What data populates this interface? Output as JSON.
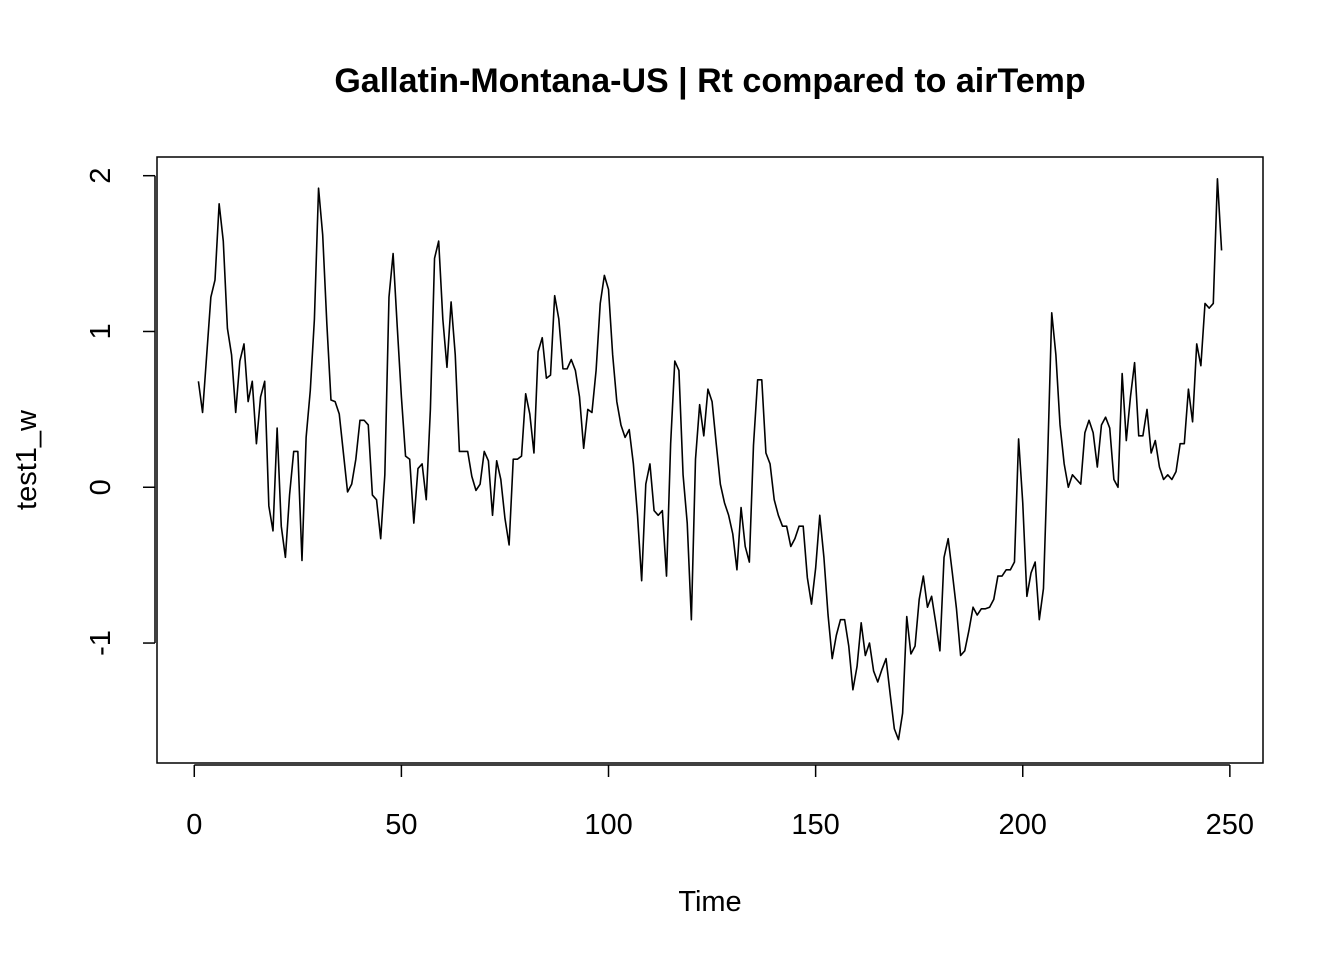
{
  "chart_data": {
    "type": "line",
    "title": "Gallatin-Montana-US | Rt compared to airTemp",
    "xlabel": "Time",
    "ylabel": "test1_w",
    "xlim": [
      -9,
      258
    ],
    "ylim": [
      -1.77,
      2.12
    ],
    "xticks": [
      0,
      50,
      100,
      150,
      200,
      250
    ],
    "xtick_labels": [
      "0",
      "50",
      "100",
      "150",
      "200",
      "250"
    ],
    "yticks": [
      -1,
      0,
      1,
      2
    ],
    "ytick_labels": [
      "-1",
      "0",
      "1",
      "2"
    ],
    "grid": false,
    "series": [
      {
        "color": "#000000",
        "x": [
          1,
          2,
          3,
          4,
          5,
          6,
          7,
          8,
          9,
          10,
          11,
          12,
          13,
          14,
          15,
          16,
          17,
          18,
          19,
          20,
          21,
          22,
          23,
          24,
          25,
          26,
          27,
          28,
          29,
          30,
          31,
          32,
          33,
          34,
          35,
          36,
          37,
          38,
          39,
          40,
          41,
          42,
          43,
          44,
          45,
          46,
          47,
          48,
          49,
          50,
          51,
          52,
          53,
          54,
          55,
          56,
          57,
          58,
          59,
          60,
          61,
          62,
          63,
          64,
          65,
          66,
          67,
          68,
          69,
          70,
          71,
          72,
          73,
          74,
          75,
          76,
          77,
          78,
          79,
          80,
          81,
          82,
          83,
          84,
          85,
          86,
          87,
          88,
          89,
          90,
          91,
          92,
          93,
          94,
          95,
          96,
          97,
          98,
          99,
          100,
          101,
          102,
          103,
          104,
          105,
          106,
          107,
          108,
          109,
          110,
          111,
          112,
          113,
          114,
          115,
          116,
          117,
          118,
          119,
          120,
          121,
          122,
          123,
          124,
          125,
          126,
          127,
          128,
          129,
          130,
          131,
          132,
          133,
          134,
          135,
          136,
          137,
          138,
          139,
          140,
          141,
          142,
          143,
          144,
          145,
          146,
          147,
          148,
          149,
          150,
          151,
          152,
          153,
          154,
          155,
          156,
          157,
          158,
          159,
          160,
          161,
          162,
          163,
          164,
          165,
          166,
          167,
          168,
          169,
          170,
          171,
          172,
          173,
          174,
          175,
          176,
          177,
          178,
          179,
          180,
          181,
          182,
          183,
          184,
          185,
          186,
          187,
          188,
          189,
          190,
          191,
          192,
          193,
          194,
          195,
          196,
          197,
          198,
          199,
          200,
          201,
          202,
          203,
          204,
          205,
          206,
          207,
          208,
          209,
          210,
          211,
          212,
          213,
          214,
          215,
          216,
          217,
          218,
          219,
          220,
          221,
          222,
          223,
          224,
          225,
          226,
          227,
          228,
          229,
          230,
          231,
          232,
          233,
          234,
          235,
          236,
          237,
          238,
          239,
          240,
          241,
          242,
          243,
          244,
          245,
          246,
          247,
          248
        ],
        "values": [
          0.68,
          0.48,
          0.85,
          1.22,
          1.33,
          1.82,
          1.58,
          1.02,
          0.85,
          0.48,
          0.81,
          0.92,
          0.55,
          0.68,
          0.28,
          0.58,
          0.68,
          -0.12,
          -0.28,
          0.38,
          -0.25,
          -0.45,
          -0.05,
          0.23,
          0.23,
          -0.47,
          0.32,
          0.62,
          1.08,
          1.92,
          1.62,
          1.05,
          0.56,
          0.55,
          0.47,
          0.22,
          -0.03,
          0.02,
          0.18,
          0.43,
          0.43,
          0.4,
          -0.05,
          -0.08,
          -0.33,
          0.08,
          1.22,
          1.5,
          1.03,
          0.58,
          0.2,
          0.18,
          -0.23,
          0.12,
          0.15,
          -0.08,
          0.5,
          1.47,
          1.58,
          1.08,
          0.77,
          1.19,
          0.85,
          0.23,
          0.23,
          0.23,
          0.07,
          -0.02,
          0.02,
          0.23,
          0.17,
          -0.18,
          0.17,
          0.05,
          -0.2,
          -0.37,
          0.18,
          0.18,
          0.2,
          0.6,
          0.47,
          0.22,
          0.87,
          0.96,
          0.7,
          0.72,
          1.23,
          1.08,
          0.76,
          0.76,
          0.82,
          0.75,
          0.58,
          0.25,
          0.5,
          0.48,
          0.75,
          1.18,
          1.36,
          1.27,
          0.85,
          0.55,
          0.4,
          0.32,
          0.37,
          0.15,
          -0.18,
          -0.6,
          0.02,
          0.15,
          -0.15,
          -0.18,
          -0.15,
          -0.57,
          0.28,
          0.81,
          0.75,
          0.08,
          -0.23,
          -0.85,
          0.18,
          0.53,
          0.33,
          0.63,
          0.55,
          0.28,
          0.02,
          -0.1,
          -0.18,
          -0.3,
          -0.53,
          -0.13,
          -0.38,
          -0.48,
          0.27,
          0.69,
          0.69,
          0.22,
          0.15,
          -0.08,
          -0.18,
          -0.25,
          -0.25,
          -0.38,
          -0.33,
          -0.25,
          -0.25,
          -0.58,
          -0.75,
          -0.52,
          -0.18,
          -0.45,
          -0.82,
          -1.1,
          -0.95,
          -0.85,
          -0.85,
          -1.02,
          -1.3,
          -1.15,
          -0.87,
          -1.08,
          -1.0,
          -1.18,
          -1.25,
          -1.17,
          -1.1,
          -1.33,
          -1.55,
          -1.62,
          -1.45,
          -0.83,
          -1.07,
          -1.02,
          -0.72,
          -0.57,
          -0.77,
          -0.7,
          -0.87,
          -1.05,
          -0.45,
          -0.33,
          -0.55,
          -0.78,
          -1.08,
          -1.05,
          -0.92,
          -0.77,
          -0.82,
          -0.78,
          -0.78,
          -0.77,
          -0.72,
          -0.57,
          -0.57,
          -0.53,
          -0.53,
          -0.48,
          0.31,
          -0.1,
          -0.7,
          -0.55,
          -0.48,
          -0.85,
          -0.65,
          0.18,
          1.12,
          0.85,
          0.4,
          0.15,
          0.0,
          0.08,
          0.05,
          0.02,
          0.35,
          0.43,
          0.35,
          0.13,
          0.4,
          0.45,
          0.38,
          0.05,
          0.0,
          0.73,
          0.3,
          0.58,
          0.8,
          0.33,
          0.33,
          0.5,
          0.22,
          0.3,
          0.13,
          0.05,
          0.08,
          0.05,
          0.1,
          0.28,
          0.28,
          0.63,
          0.42,
          0.92,
          0.78,
          1.18,
          1.15,
          1.18,
          1.98,
          1.52
        ]
      }
    ]
  }
}
